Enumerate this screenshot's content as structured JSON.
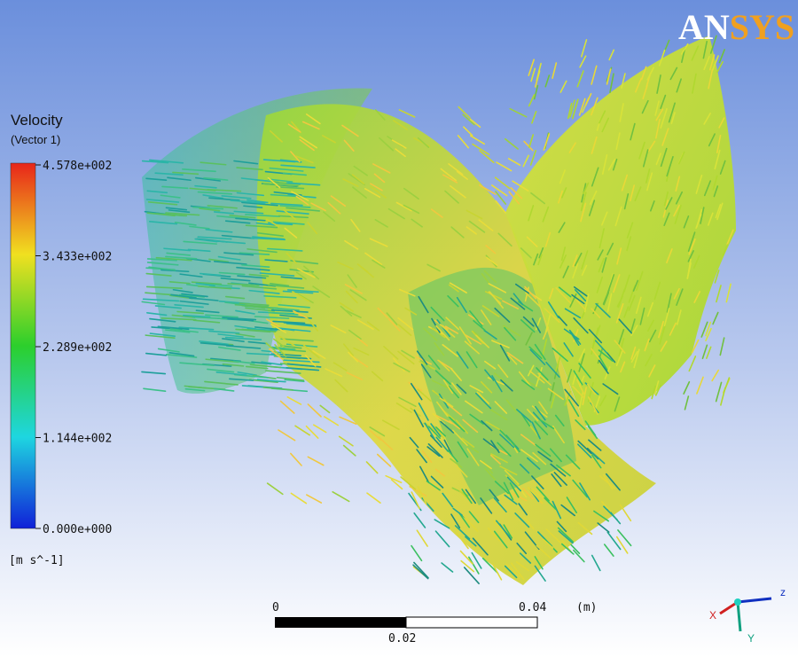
{
  "logo": {
    "part1": "AN",
    "part2": "SYS"
  },
  "legend": {
    "title": "Velocity",
    "subtitle": "(Vector 1)",
    "labels": [
      "4.578e+002",
      "3.433e+002",
      "2.289e+002",
      "1.144e+002",
      "0.000e+000"
    ],
    "unit": "[m s^-1]"
  },
  "scale_bar": {
    "start": "0",
    "end": "0.04",
    "unit": "(m)",
    "mid": "0.02"
  },
  "triad": {
    "z": "z",
    "y": "Y",
    "x": "X"
  }
}
